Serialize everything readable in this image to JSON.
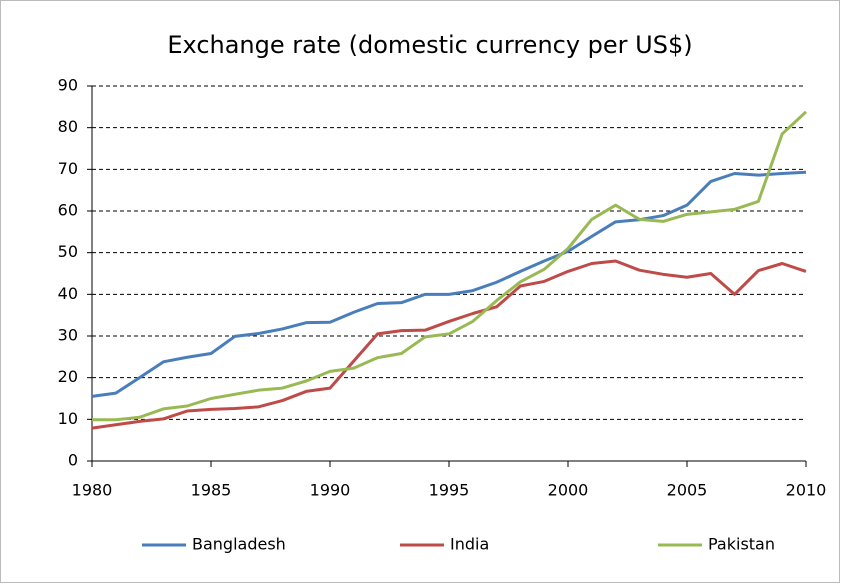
{
  "chart_data": {
    "type": "line",
    "title": "Exchange rate (domestic currency per US$)",
    "x": [
      1980,
      1981,
      1982,
      1983,
      1984,
      1985,
      1986,
      1987,
      1988,
      1989,
      1990,
      1991,
      1992,
      1993,
      1994,
      1995,
      1996,
      1997,
      1998,
      1999,
      2000,
      2001,
      2002,
      2003,
      2004,
      2005,
      2006,
      2007,
      2008,
      2009,
      2010
    ],
    "series": [
      {
        "name": "Bangladesh",
        "color": "#4a7ebb",
        "values": [
          15.5,
          16.3,
          20,
          23.8,
          24.9,
          25.8,
          29.9,
          30.6,
          31.7,
          33.2,
          33.3,
          35.7,
          37.8,
          38,
          40,
          40,
          40.9,
          42.9,
          45.5,
          48,
          50.3,
          53.9,
          57.4,
          57.9,
          58.9,
          61.4,
          67.1,
          69,
          68.6,
          69,
          69.3
        ]
      },
      {
        "name": "India",
        "color": "#be4b48",
        "values": [
          7.9,
          8.7,
          9.5,
          10.1,
          12,
          12.4,
          12.6,
          13,
          14.5,
          16.7,
          17.5,
          24,
          30.5,
          31.3,
          31.4,
          33.5,
          35.4,
          37,
          42,
          43.1,
          45.5,
          47.4,
          48,
          45.8,
          44.8,
          44.1,
          45,
          40,
          45.7,
          47.4,
          45.5
        ]
      },
      {
        "name": "Pakistan",
        "color": "#98b954",
        "values": [
          9.9,
          9.9,
          10.5,
          12.5,
          13.2,
          15,
          16,
          17,
          17.5,
          19.2,
          21.5,
          22.3,
          24.8,
          25.8,
          29.8,
          30.5,
          33.5,
          38.5,
          43,
          46,
          51,
          58,
          61.4,
          58,
          57.5,
          59.2,
          59.8,
          60.4,
          62.3,
          78.5,
          83.8
        ]
      }
    ],
    "xlim": [
      1980,
      2010
    ],
    "xticks": [
      1980,
      1985,
      1990,
      1995,
      2000,
      2005,
      2010
    ],
    "ylim": [
      0,
      90
    ],
    "yticks": [
      0,
      10,
      20,
      30,
      40,
      50,
      60,
      70,
      80,
      90
    ],
    "grid": true,
    "legend": "bottom"
  }
}
